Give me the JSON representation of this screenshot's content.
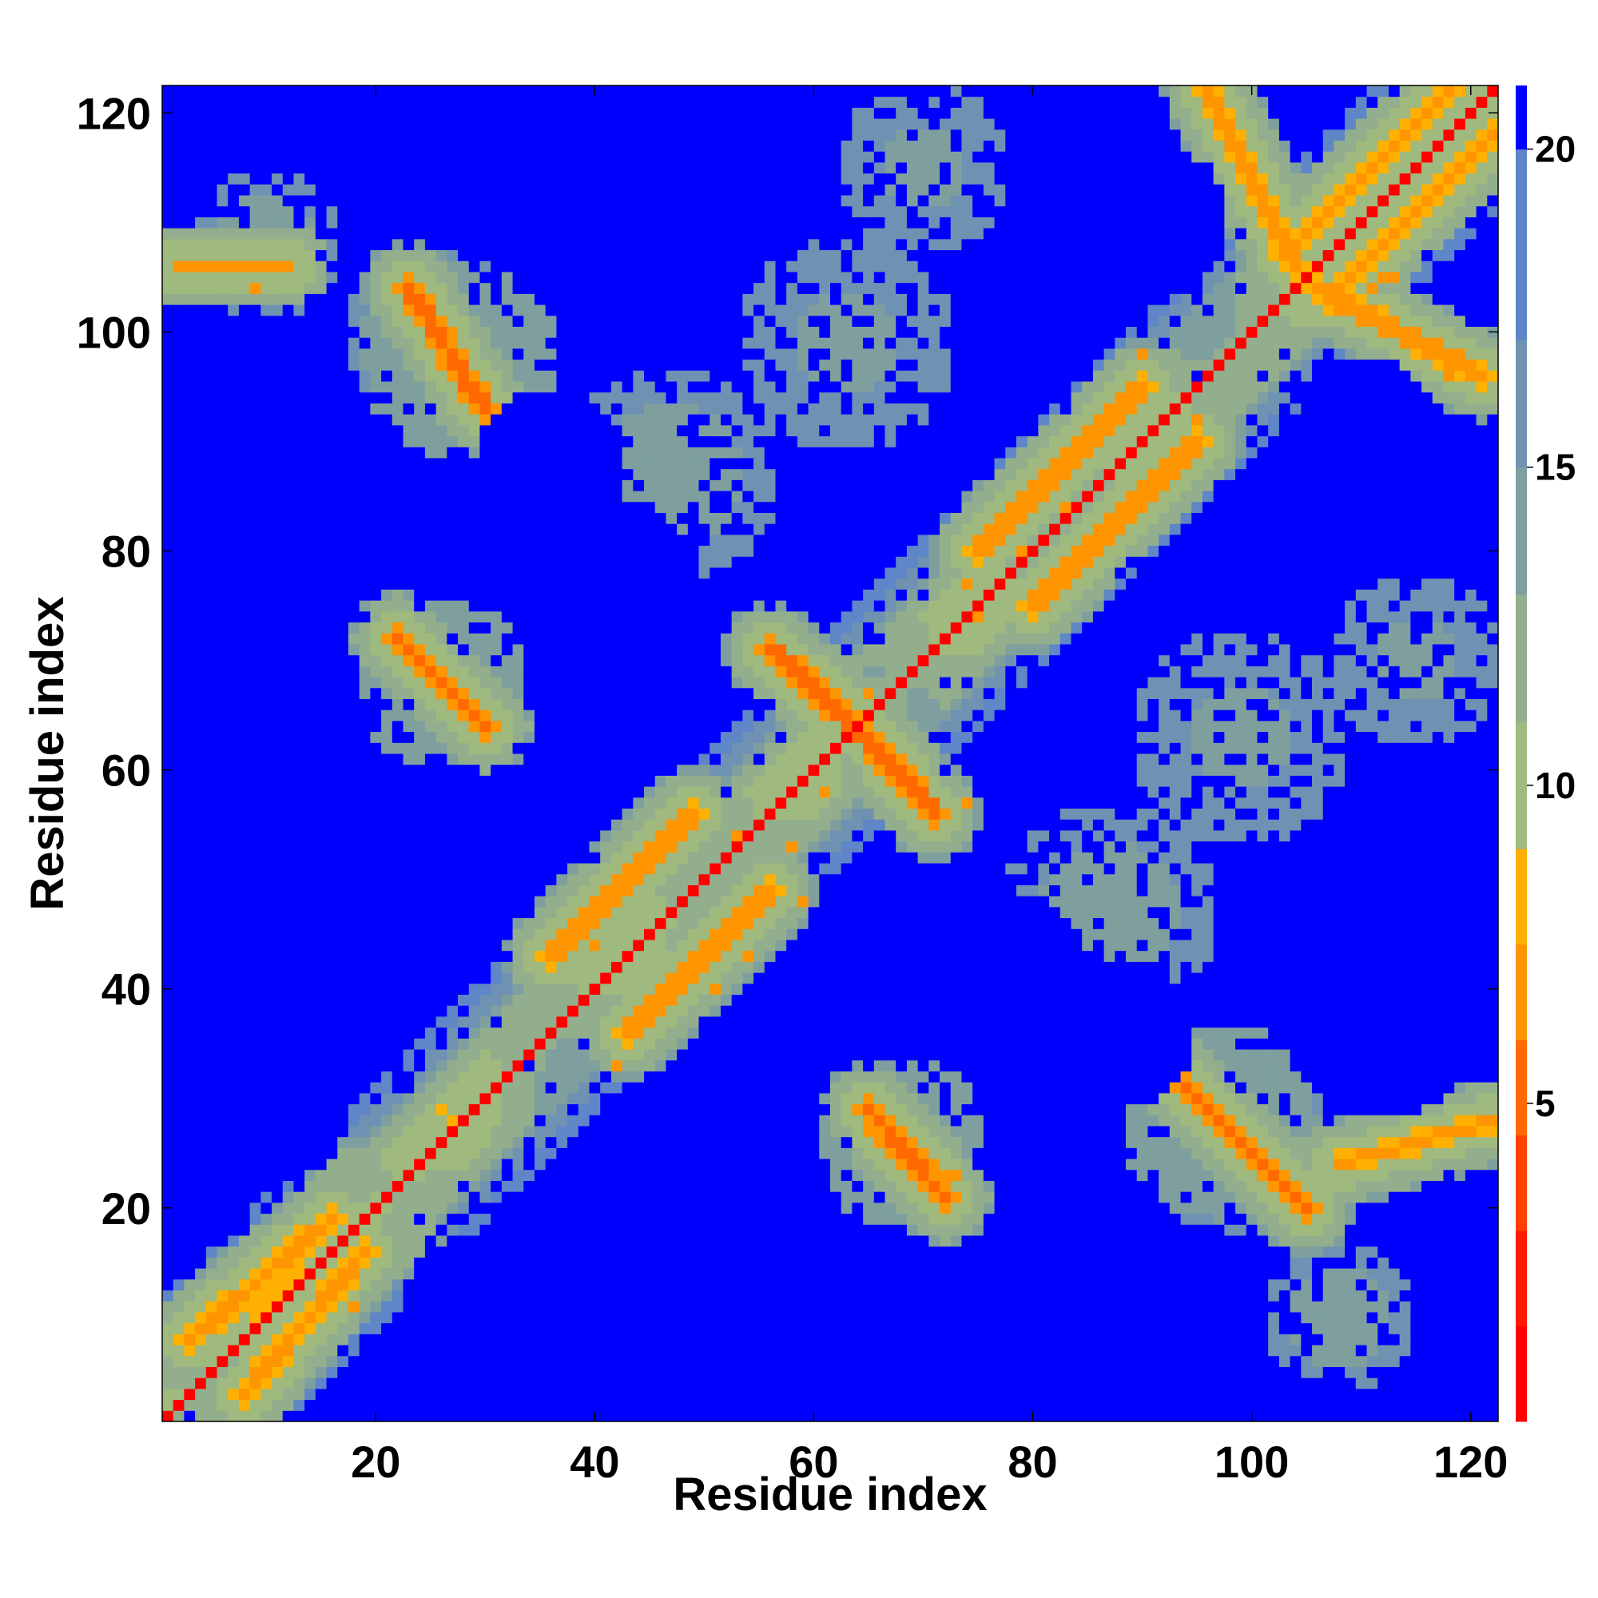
{
  "chart_data": {
    "type": "heatmap",
    "title": "",
    "xlabel": "Residue index",
    "ylabel": "Residue index",
    "n_residues": 122,
    "xlim": [
      1,
      122
    ],
    "ylim": [
      1,
      122
    ],
    "x_ticks": [
      20,
      40,
      60,
      80,
      100,
      120
    ],
    "y_ticks": [
      20,
      40,
      60,
      80,
      100,
      120
    ],
    "colorbar": {
      "range": [
        0,
        21
      ],
      "ticks": [
        5,
        10,
        15,
        20
      ],
      "colors": [
        "#ff0000",
        "#ff1a00",
        "#ff4000",
        "#ff6a00",
        "#ff9500",
        "#ffb000",
        "#9fb97e",
        "#93ae8c",
        "#7f9f9f",
        "#6f92b3",
        "#5f86c6",
        "#0000ff"
      ],
      "boundaries": [
        0,
        1.5,
        3,
        4.5,
        6,
        7.5,
        9,
        11,
        13,
        15,
        17,
        20,
        21
      ]
    },
    "diagonal": {
      "from": 1,
      "to": 122
    },
    "near_diagonal_bands": [
      {
        "from": 1,
        "to": 122,
        "offset": 1.2,
        "value": 5.8
      },
      {
        "from": 1,
        "to": 122,
        "offset": 2.4,
        "value": 8.6
      }
    ],
    "contact_strips": [
      {
        "i0": 30,
        "j0": 93,
        "i1": 23,
        "j1": 104,
        "value": 5.2,
        "width": 1.3
      },
      {
        "i0": 30,
        "j0": 64,
        "i1": 22,
        "j1": 72,
        "value": 5.3,
        "width": 1.4
      },
      {
        "i0": 56,
        "j0": 71,
        "i1": 64,
        "j1": 64,
        "value": 5.2,
        "width": 1.3
      },
      {
        "i0": 64,
        "j0": 64,
        "i1": 71,
        "j1": 56,
        "value": 5.2,
        "width": 1.3
      },
      {
        "i0": 65,
        "j0": 29,
        "i1": 72,
        "j1": 21,
        "value": 5.4,
        "width": 1.4
      },
      {
        "i0": 93,
        "j0": 32,
        "i1": 105,
        "j1": 20,
        "value": 5.2,
        "width": 1.3
      },
      {
        "i0": 36,
        "j0": 43,
        "i1": 49,
        "j1": 56,
        "value": 6.4,
        "width": 1.3
      },
      {
        "i0": 43,
        "j0": 36,
        "i1": 56,
        "j1": 49,
        "value": 6.4,
        "width": 1.3
      },
      {
        "i0": 75,
        "j0": 80,
        "i1": 90,
        "j1": 95,
        "value": 6.4,
        "width": 1.2
      },
      {
        "i0": 80,
        "j0": 75,
        "i1": 95,
        "j1": 90,
        "value": 6.4,
        "width": 1.2
      },
      {
        "i0": 3,
        "j0": 8,
        "i1": 16,
        "j1": 19,
        "value": 6.8,
        "width": 1.2
      },
      {
        "i0": 8,
        "j0": 3,
        "i1": 19,
        "j1": 16,
        "value": 6.8,
        "width": 1.2
      },
      {
        "i0": 103,
        "j0": 107,
        "i1": 118,
        "j1": 122,
        "value": 6.8,
        "width": 1.2
      },
      {
        "i0": 107,
        "j0": 103,
        "i1": 122,
        "j1": 118,
        "value": 6.8,
        "width": 1.2
      },
      {
        "i0": 96,
        "j0": 122,
        "i1": 104,
        "j1": 106,
        "value": 6.5,
        "width": 1.1
      },
      {
        "i0": 106,
        "j0": 104,
        "i1": 121,
        "j1": 96,
        "value": 6.5,
        "width": 1.1
      },
      {
        "i0": 108,
        "j0": 24,
        "i1": 122,
        "j1": 28,
        "value": 7.0,
        "width": 1.0
      },
      {
        "i0": 2,
        "j0": 106,
        "i1": 12,
        "j1": 106,
        "value": 7.0,
        "width": 1.0
      }
    ],
    "helix_blocks": [
      {
        "c": [
          20,
          20
        ],
        "r": 7,
        "value": 10.5
      },
      {
        "c": [
          63,
          63
        ],
        "r": 7,
        "value": 10.5
      },
      {
        "c": [
          80,
          80
        ],
        "r": 8,
        "value": 11.0
      },
      {
        "c": [
          118,
          118
        ],
        "r": 6,
        "value": 10.5
      },
      {
        "c": [
          28,
          97
        ],
        "r": 9,
        "value": 12.0
      },
      {
        "c": [
          97,
          28
        ],
        "r": 9,
        "value": 12.0
      },
      {
        "c": [
          26,
          68
        ],
        "r": 8,
        "value": 12.0
      },
      {
        "c": [
          68,
          26
        ],
        "r": 8,
        "value": 12.0
      },
      {
        "c": [
          99,
          26
        ],
        "r": 9,
        "value": 12.5
      },
      {
        "c": [
          26,
          99
        ],
        "r": 9,
        "value": 12.5
      },
      {
        "c": [
          63,
          99
        ],
        "r": 10,
        "value": 13.5
      },
      {
        "c": [
          99,
          63
        ],
        "r": 10,
        "value": 13.5
      },
      {
        "c": [
          47,
          87
        ],
        "r": 10,
        "value": 13.0
      },
      {
        "c": [
          87,
          47
        ],
        "r": 10,
        "value": 13.0
      },
      {
        "c": [
          10,
          108
        ],
        "r": 7,
        "value": 13.0
      },
      {
        "c": [
          108,
          10
        ],
        "r": 7,
        "value": 13.0
      },
      {
        "c": [
          115,
          70
        ],
        "r": 8,
        "value": 13.5
      },
      {
        "c": [
          70,
          115
        ],
        "r": 8,
        "value": 13.5
      }
    ],
    "noncontact_voids": [
      {
        "c": [
          42,
          110
        ],
        "r": 7
      },
      {
        "c": [
          110,
          42
        ],
        "r": 7
      },
      {
        "c": [
          9,
          92
        ],
        "r": 10
      },
      {
        "c": [
          92,
          9
        ],
        "r": 10
      },
      {
        "c": [
          9,
          45
        ],
        "r": 12
      },
      {
        "c": [
          45,
          9
        ],
        "r": 12
      },
      {
        "c": [
          30,
          10
        ],
        "r": 8
      },
      {
        "c": [
          10,
          30
        ],
        "r": 8
      },
      {
        "c": [
          42,
          78
        ],
        "r": 7
      },
      {
        "c": [
          78,
          42
        ],
        "r": 7
      },
      {
        "c": [
          110,
          92
        ],
        "r": 6
      },
      {
        "c": [
          92,
          110
        ],
        "r": 6
      },
      {
        "c": [
          88,
          36
        ],
        "r": 7
      },
      {
        "c": [
          36,
          88
        ],
        "r": 7
      },
      {
        "c": [
          112,
          36
        ],
        "r": 8
      },
      {
        "c": [
          36,
          112
        ],
        "r": 8
      },
      {
        "c": [
          64,
          8
        ],
        "r": 7
      },
      {
        "c": [
          8,
          64
        ],
        "r": 7
      },
      {
        "c": [
          85,
          8
        ],
        "r": 6
      },
      {
        "c": [
          8,
          85
        ],
        "r": 6
      }
    ],
    "distance_unit_scale": 1
  }
}
